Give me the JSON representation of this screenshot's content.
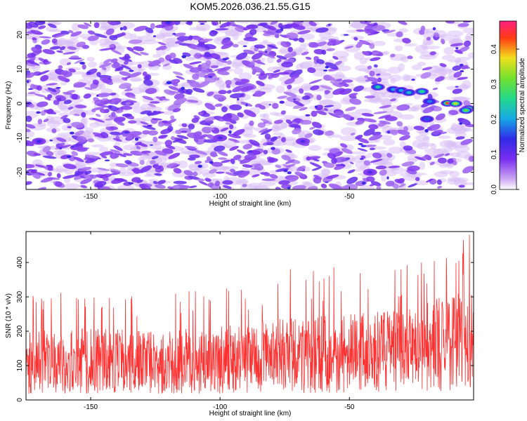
{
  "title": "KOM5.2026.036.21.55.G15",
  "chart_data": [
    {
      "type": "heatmap",
      "xlabel": "Height of straight line (km)",
      "ylabel": "Frequency (Hz)",
      "xlim": [
        -175,
        -2
      ],
      "ylim": [
        -25,
        24
      ],
      "xticks": [
        -150,
        -100,
        -50
      ],
      "xtick_labels": [
        "-150",
        "-100",
        "-50"
      ],
      "yticks": [
        -20,
        -10,
        0,
        10,
        20
      ],
      "ytick_labels": [
        "-20",
        "-10",
        "0",
        "10",
        "20"
      ],
      "colorbar": {
        "label": "Normalized spectral amplitude",
        "range": [
          0.0,
          0.48
        ],
        "ticks": [
          0.0,
          0.1,
          0.2,
          0.3,
          0.4
        ],
        "tick_labels": [
          "0.0",
          "0.1",
          "0.2",
          "0.3",
          "0.4"
        ]
      },
      "peaks": [
        {
          "height_km": -39,
          "freq_hz": 4.8,
          "amp": 0.24
        },
        {
          "height_km": -33,
          "freq_hz": 4.1,
          "amp": 0.2
        },
        {
          "height_km": -30,
          "freq_hz": 3.8,
          "amp": 0.2
        },
        {
          "height_km": -27,
          "freq_hz": 3.2,
          "amp": 0.22
        },
        {
          "height_km": -22,
          "freq_hz": 3.5,
          "amp": 0.26
        },
        {
          "height_km": -19,
          "freq_hz": 0.6,
          "amp": 0.18
        },
        {
          "height_km": -12,
          "freq_hz": 0.1,
          "amp": 0.42
        },
        {
          "height_km": -9,
          "freq_hz": 0.0,
          "amp": 0.35
        },
        {
          "height_km": -4,
          "freq_hz": -1.5,
          "amp": 0.45
        },
        {
          "height_km": -5,
          "freq_hz": -2.0,
          "amp": 0.3
        },
        {
          "height_km": -20,
          "freq_hz": -4.5,
          "amp": 0.16
        },
        {
          "height_km": -100,
          "freq_hz": -10.0,
          "amp": 0.12
        },
        {
          "height_km": -120,
          "freq_hz": 23.5,
          "amp": 0.13
        },
        {
          "height_km": -68,
          "freq_hz": -11.0,
          "amp": 0.12
        },
        {
          "height_km": -170,
          "freq_hz": -11.0,
          "amp": 0.13
        },
        {
          "height_km": -42,
          "freq_hz": -20.0,
          "amp": 0.12
        }
      ]
    },
    {
      "type": "line",
      "xlabel": "Height of straight line (km)",
      "ylabel": "SNR (10 * v/v)",
      "xlim": [
        -175,
        -2
      ],
      "ylim": [
        0,
        490
      ],
      "xticks": [
        -150,
        -100,
        -50
      ],
      "xtick_labels": [
        "-150",
        "-100",
        "-50"
      ],
      "yticks": [
        0,
        100,
        200,
        300,
        400
      ],
      "ytick_labels": [
        "0",
        "100",
        "200",
        "300",
        "400"
      ],
      "series": [
        {
          "name": "SNR",
          "color": "#ff3030",
          "envelope": [
            {
              "height_km": -175,
              "mean": 115,
              "max": 300
            },
            {
              "height_km": -150,
              "mean": 115,
              "max": 330
            },
            {
              "height_km": -125,
              "mean": 110,
              "max": 310
            },
            {
              "height_km": -100,
              "mean": 120,
              "max": 330
            },
            {
              "height_km": -75,
              "mean": 125,
              "max": 380
            },
            {
              "height_km": -50,
              "mean": 135,
              "max": 390
            },
            {
              "height_km": -25,
              "mean": 160,
              "max": 400
            },
            {
              "height_km": -15,
              "mean": 175,
              "max": 450
            },
            {
              "height_km": -2,
              "mean": 180,
              "max": 490
            }
          ]
        }
      ]
    }
  ]
}
